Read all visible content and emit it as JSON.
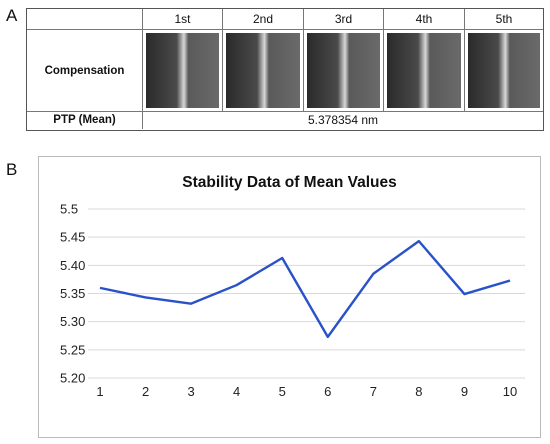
{
  "panels": {
    "a_label": "A",
    "b_label": "B"
  },
  "table": {
    "columns": [
      "1st",
      "2nd",
      "3rd",
      "4th",
      "5th"
    ],
    "row1_label": "Compensation",
    "row1_images": [
      "SEM line image 1",
      "SEM line image 2",
      "SEM line image 3",
      "SEM line image 4",
      "SEM line image 5"
    ],
    "row2_label": "PTP (Mean)",
    "row2_value": "5.378354 nm"
  },
  "chart_data": {
    "type": "line",
    "title": "Stability Data of Mean Values",
    "xlabel": "",
    "ylabel": "",
    "x": [
      1,
      2,
      3,
      4,
      5,
      6,
      7,
      8,
      9,
      10
    ],
    "series": [
      {
        "name": "",
        "values": [
          5.36,
          5.343,
          5.332,
          5.365,
          5.413,
          5.273,
          5.385,
          5.443,
          5.349,
          5.373
        ],
        "color": "#2952c8"
      }
    ],
    "xticks": [
      "1",
      "2",
      "3",
      "4",
      "5",
      "6",
      "7",
      "8",
      "9",
      "10"
    ],
    "yticks": [
      "5.20",
      "5.25",
      "5.30",
      "5.35",
      "5.40",
      "5.45",
      "5.5"
    ],
    "ylim": [
      5.2,
      5.5
    ],
    "xlim": [
      1,
      10
    ],
    "grid": "horizontal",
    "legend": "none"
  }
}
